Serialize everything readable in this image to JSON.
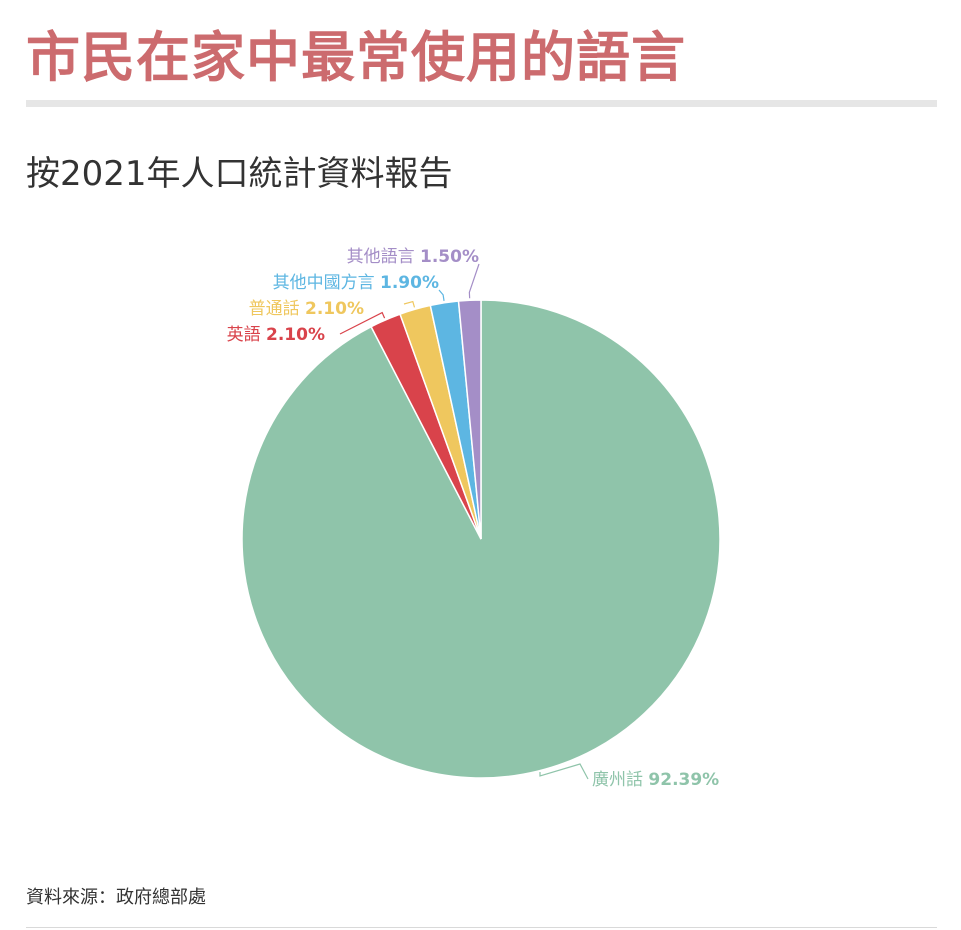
{
  "title": "市民在家中最常使用的語言",
  "subtitle": "按2021年人口統計資料報告",
  "source": "資料來源：政府總部處",
  "chart_data": {
    "type": "pie",
    "start_angle": "12 o'clock, clockwise",
    "slices": [
      {
        "name": "廣州話",
        "value": 92.39,
        "label": "92.39%",
        "color": "#8fc4aa"
      },
      {
        "name": "英語",
        "value": 2.1,
        "label": "2.10%",
        "color": "#d9434b"
      },
      {
        "name": "普通話",
        "value": 2.1,
        "label": "2.10%",
        "color": "#efc75e"
      },
      {
        "name": "其他中國方言",
        "value": 1.9,
        "label": "1.90%",
        "color": "#5db6e2"
      },
      {
        "name": "其他語言",
        "value": 1.5,
        "label": "1.50%",
        "color": "#a48ec7"
      }
    ]
  }
}
